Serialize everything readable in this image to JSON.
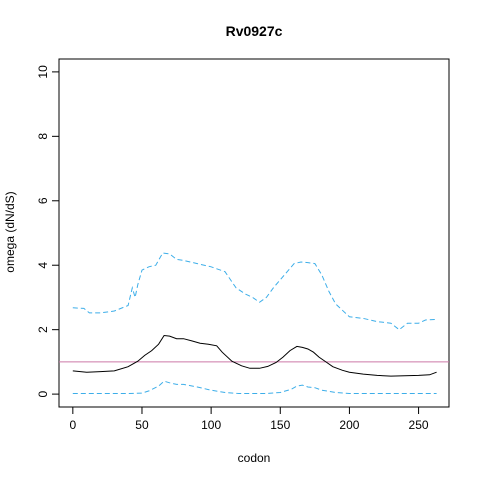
{
  "chart_data": {
    "type": "line",
    "title": "Rv0927c",
    "xlabel": "codon",
    "ylabel": "omega (dN/dS)",
    "xlim": [
      -10,
      272
    ],
    "ylim": [
      -0.4,
      10.4
    ],
    "xticks": [
      0,
      50,
      100,
      150,
      200,
      250
    ],
    "yticks": [
      0,
      2,
      4,
      6,
      8,
      10
    ],
    "reference_line": {
      "y": 1,
      "color": "#cc79a7"
    },
    "series": [
      {
        "style": "solid",
        "color": "#000000",
        "x": [
          0,
          10,
          20,
          30,
          40,
          47,
          52,
          57,
          62,
          66,
          70,
          75,
          80,
          86,
          92,
          98,
          104,
          108,
          115,
          122,
          128,
          135,
          141,
          147,
          152,
          157,
          162,
          166,
          170,
          174,
          178,
          183,
          188,
          195,
          200,
          210,
          220,
          230,
          240,
          250,
          258,
          263
        ],
        "y": [
          0.72,
          0.68,
          0.7,
          0.72,
          0.85,
          1.02,
          1.2,
          1.35,
          1.55,
          1.82,
          1.8,
          1.72,
          1.72,
          1.65,
          1.58,
          1.55,
          1.5,
          1.3,
          1.02,
          0.88,
          0.8,
          0.8,
          0.86,
          0.98,
          1.15,
          1.35,
          1.48,
          1.45,
          1.4,
          1.3,
          1.15,
          1.0,
          0.85,
          0.74,
          0.68,
          0.62,
          0.58,
          0.56,
          0.57,
          0.58,
          0.6,
          0.68
        ]
      },
      {
        "style": "dashed",
        "color": "#3daee9",
        "x": [
          0,
          8,
          12,
          20,
          30,
          40,
          43,
          45,
          47,
          50,
          55,
          60,
          65,
          70,
          75,
          80,
          90,
          100,
          110,
          118,
          125,
          130,
          135,
          140,
          145,
          150,
          155,
          160,
          165,
          170,
          175,
          180,
          185,
          190,
          200,
          210,
          220,
          230,
          236,
          242,
          250,
          255,
          263
        ],
        "y": [
          2.68,
          2.66,
          2.52,
          2.52,
          2.58,
          2.75,
          3.3,
          3.0,
          3.4,
          3.85,
          3.95,
          4.0,
          4.38,
          4.35,
          4.18,
          4.15,
          4.05,
          3.95,
          3.8,
          3.3,
          3.1,
          3.0,
          2.85,
          3.0,
          3.3,
          3.55,
          3.8,
          4.05,
          4.1,
          4.08,
          4.05,
          3.7,
          3.2,
          2.8,
          2.4,
          2.35,
          2.25,
          2.2,
          2.0,
          2.2,
          2.2,
          2.3,
          2.32
        ]
      },
      {
        "style": "dashed",
        "color": "#3daee9",
        "x": [
          0,
          20,
          40,
          50,
          55,
          62,
          66,
          70,
          75,
          80,
          90,
          100,
          110,
          120,
          130,
          140,
          150,
          158,
          162,
          166,
          170,
          175,
          180,
          190,
          200,
          220,
          240,
          263
        ],
        "y": [
          0.02,
          0.02,
          0.02,
          0.03,
          0.1,
          0.25,
          0.4,
          0.35,
          0.3,
          0.3,
          0.22,
          0.12,
          0.05,
          0.02,
          0.02,
          0.02,
          0.05,
          0.15,
          0.25,
          0.28,
          0.22,
          0.2,
          0.12,
          0.05,
          0.02,
          0.02,
          0.02,
          0.02
        ]
      }
    ]
  }
}
